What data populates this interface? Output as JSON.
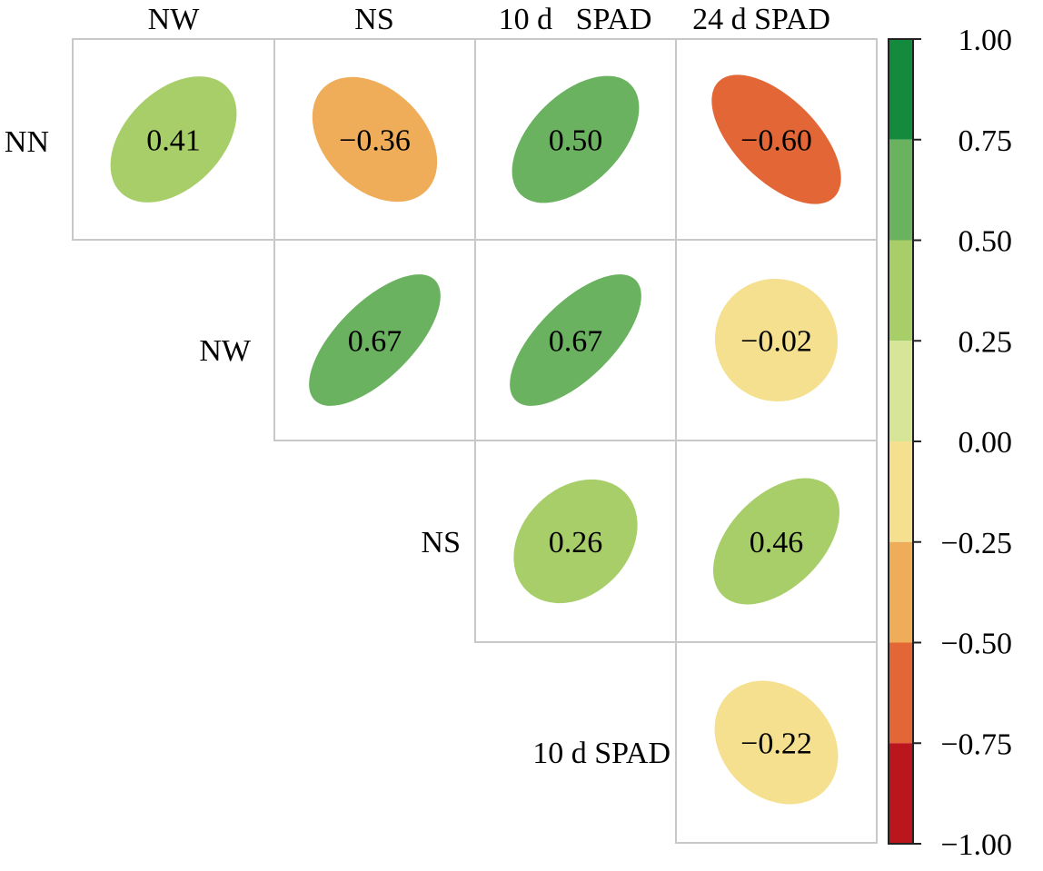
{
  "chart_data": {
    "type": "heatmap",
    "subtype": "correlation-ellipse-matrix",
    "title": "",
    "column_labels": [
      "NW",
      "NS",
      "10 d   SPAD",
      "24 d SPAD"
    ],
    "row_labels": [
      "NN",
      "NW",
      "NS",
      "10 d SPAD"
    ],
    "cells": [
      {
        "row": 0,
        "col": 0,
        "value": 0.41,
        "label": "0.41"
      },
      {
        "row": 0,
        "col": 1,
        "value": -0.36,
        "label": "-0.36"
      },
      {
        "row": 0,
        "col": 2,
        "value": 0.5,
        "label": "0.50"
      },
      {
        "row": 0,
        "col": 3,
        "value": -0.6,
        "label": "-0.60"
      },
      {
        "row": 1,
        "col": 1,
        "value": 0.67,
        "label": "0.67"
      },
      {
        "row": 1,
        "col": 2,
        "value": 0.67,
        "label": "0.67"
      },
      {
        "row": 1,
        "col": 3,
        "value": -0.02,
        "label": "-0.02"
      },
      {
        "row": 2,
        "col": 2,
        "value": 0.26,
        "label": "0.26"
      },
      {
        "row": 2,
        "col": 3,
        "value": 0.46,
        "label": "0.46"
      },
      {
        "row": 3,
        "col": 3,
        "value": -0.22,
        "label": "-0.22"
      }
    ],
    "colorbar": {
      "range": [
        -1.0,
        1.0
      ],
      "ticks": [
        "1.00",
        "0.75",
        "0.50",
        "0.25",
        "0.00",
        "-0.25",
        "-0.50",
        "-0.75",
        "-1.00"
      ],
      "tick_values": [
        1.0,
        0.75,
        0.5,
        0.25,
        0.0,
        -0.25,
        -0.5,
        -0.75,
        -1.0
      ],
      "bins": [
        {
          "from": 0.75,
          "to": 1.0,
          "color": "#138a3c"
        },
        {
          "from": 0.5,
          "to": 0.75,
          "color": "#6ab160"
        },
        {
          "from": 0.25,
          "to": 0.5,
          "color": "#a8ce6a"
        },
        {
          "from": 0.0,
          "to": 0.25,
          "color": "#d6e597"
        },
        {
          "from": -0.25,
          "to": 0.0,
          "color": "#f4e08e"
        },
        {
          "from": -0.5,
          "to": -0.25,
          "color": "#efad5a"
        },
        {
          "from": -0.75,
          "to": -0.5,
          "color": "#e36636"
        },
        {
          "from": -1.0,
          "to": -0.75,
          "color": "#bb151e"
        }
      ],
      "placement": "right"
    },
    "grid_color": "#c8c8c8"
  }
}
